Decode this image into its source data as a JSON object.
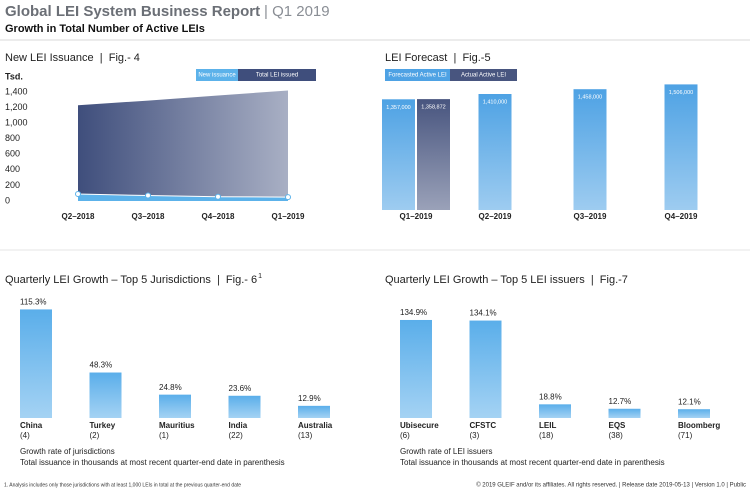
{
  "header": {
    "title": "Global LEI System Business Report",
    "period": "| Q1 2019",
    "subtitle": "Growth in Total Number of Active LEIs"
  },
  "chart_data": [
    {
      "type": "area",
      "title": "New LEI Issuance  |  Fig.- 4",
      "y_label": "Tsd.",
      "categories": [
        "Q2–2018",
        "Q3–2018",
        "Q4–2018",
        "Q1–2019"
      ],
      "series": [
        {
          "name": "New issuance",
          "color": "#5cb2ea",
          "values": [
            90,
            70,
            55,
            50
          ]
        },
        {
          "name": "Total LEI issued",
          "color": "#3f4e7c",
          "values": [
            1230,
            1290,
            1355,
            1420
          ]
        }
      ],
      "ylim": [
        0,
        1400
      ],
      "yticks": [
        0,
        200,
        400,
        600,
        800,
        {
          "value": 1000,
          "label": "1,000"
        },
        {
          "value": 1200,
          "label": "1,200"
        },
        {
          "value": 1400,
          "label": "1,400"
        }
      ]
    },
    {
      "type": "groupbar",
      "title": "LEI Forecast  |  Fig.-5",
      "categories": [
        "Q1–2019",
        "Q2–2019",
        "Q3–2019",
        "Q4–2019"
      ],
      "series": [
        {
          "name": "Forecasted Active LEI",
          "color": "#4ea2e4",
          "values": [
            1357000,
            1410000,
            1458000,
            1506000
          ],
          "value_labels": [
            "1,357,000",
            "1,410,000",
            "1,458,000",
            "1,506,000"
          ]
        },
        {
          "name": "Actual Active LEI",
          "color": "#48557f",
          "values": [
            1358872,
            null,
            null,
            null
          ],
          "value_labels": [
            "1,358,872",
            null,
            null,
            null
          ]
        }
      ],
      "ylim": [
        250000,
        1550000
      ]
    },
    {
      "type": "bar",
      "title": "Quarterly LEI Growth – Top 5 Jurisdictions  |  Fig.- 6",
      "title_superscript": "1",
      "categories": [
        "China",
        "Turkey",
        "Mauritius",
        "India",
        "Australia"
      ],
      "sublabels": [
        "(4)",
        "(2)",
        "(1)",
        "(22)",
        "(13)"
      ],
      "values": [
        115.3,
        48.3,
        24.8,
        23.6,
        12.9
      ],
      "value_labels": [
        "115.3%",
        "48.3%",
        "24.8%",
        "23.6%",
        "12.9%"
      ],
      "color": "#5aaeea",
      "ylim": [
        0,
        120
      ],
      "notes": [
        "Growth rate of jurisdictions",
        "Total issuance in thousands at most recent quarter-end date in parenthesis"
      ]
    },
    {
      "type": "bar",
      "title": "Quarterly LEI Growth – Top 5 LEI issuers  |  Fig.-7",
      "categories": [
        "Ubisecure",
        "CFSTC",
        "LEIL",
        "EQS",
        "Bloomberg"
      ],
      "sublabels": [
        "(6)",
        "(3)",
        "(18)",
        "(38)",
        "(71)"
      ],
      "values": [
        134.9,
        134.1,
        18.8,
        12.7,
        12.1
      ],
      "value_labels": [
        "134.9%",
        "134.1%",
        "18.8%",
        "12.7%",
        "12.1%"
      ],
      "color": "#5aaeea",
      "ylim": [
        0,
        150
      ],
      "notes": [
        "Growth rate of LEI issuers",
        "Total issuance in thousands at most recent quarter-end date in parenthesis"
      ]
    }
  ],
  "footnote": "1. Analysis includes only those jurisdictions with at least 1,000 LEIs in total at the previous quarter-end date",
  "footer": "© 2019 GLEIF and/or its affiliates. All rights reserved.  |  Release date 2019-05-13  |  Version 1.0  |  Public"
}
